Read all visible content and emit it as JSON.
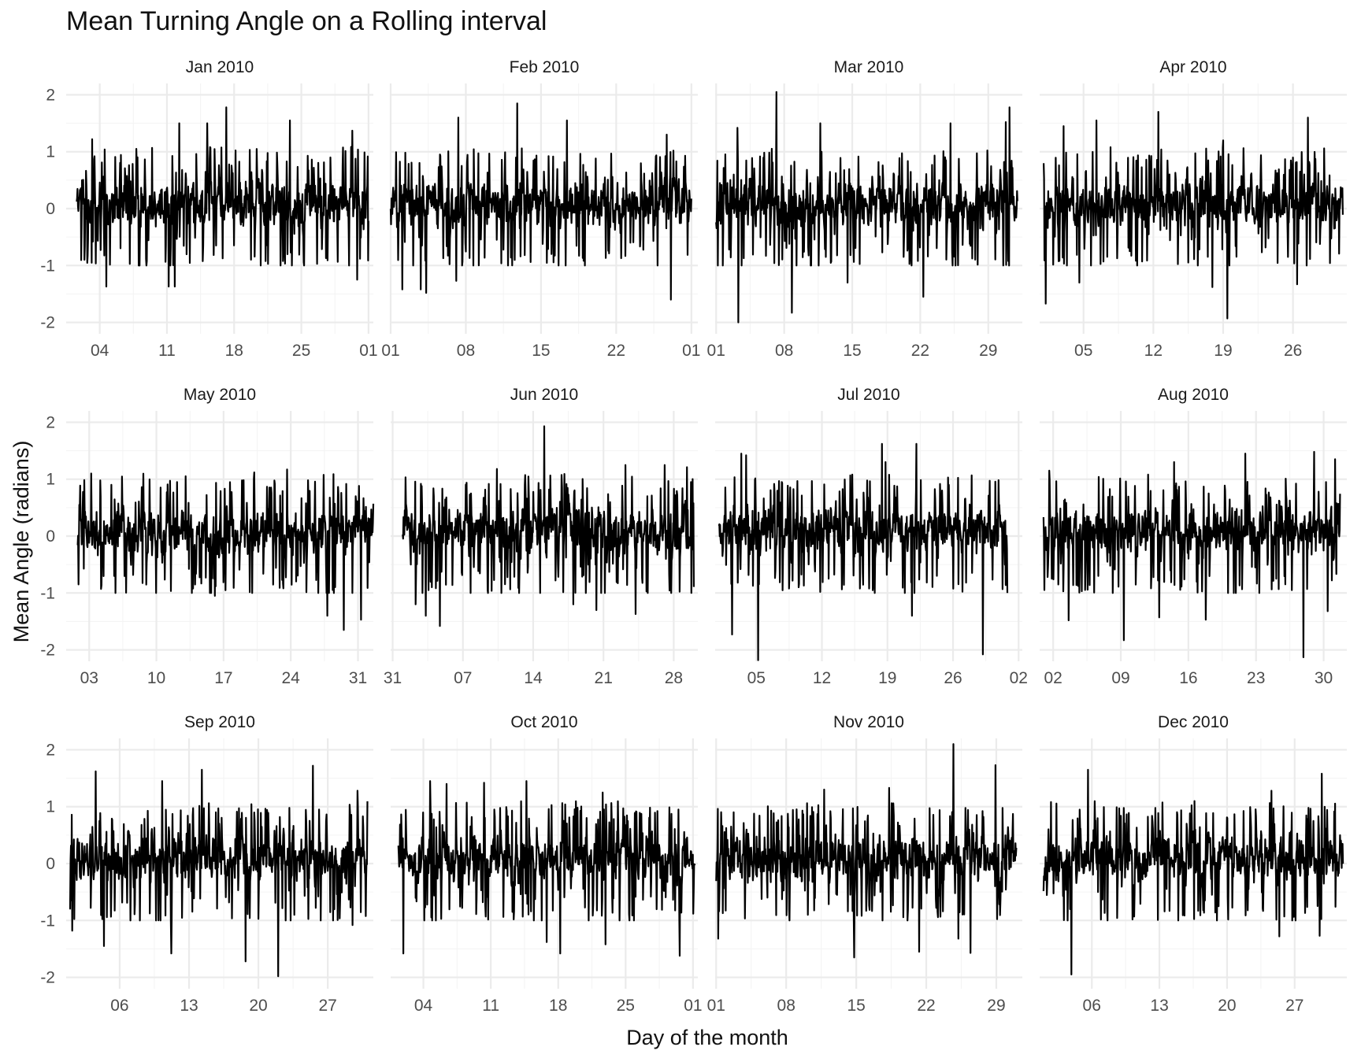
{
  "chart_data": {
    "type": "line",
    "title": "Mean Turning Angle on a Rolling interval",
    "xlabel": "Day of the month",
    "ylabel": "Mean Angle (radians)",
    "ylim": [
      -2.2,
      2.2
    ],
    "y_ticks": [
      -2,
      -1,
      0,
      1,
      2
    ],
    "grid": true,
    "legend": "none",
    "line_color": "#000000",
    "panels": [
      {
        "label": "Jan 2010",
        "x_ticks": [
          "04",
          "11",
          "18",
          "25",
          "01"
        ],
        "x_tick_days": [
          3,
          10,
          17,
          24,
          31
        ],
        "x_range": [
          -0.5,
          31.5
        ],
        "data_range": [
          0.6,
          31.0
        ],
        "peaks": [
          [
            2.2,
            1.22
          ],
          [
            6.8,
            1.05
          ],
          [
            11.3,
            1.5
          ],
          [
            14.2,
            1.5
          ],
          [
            16.2,
            1.78
          ],
          [
            22.8,
            1.55
          ],
          [
            29.3,
            1.37
          ]
        ],
        "troughs": [
          [
            1.4,
            -0.9
          ],
          [
            3.7,
            -1.37
          ],
          [
            10.2,
            -1.37
          ],
          [
            10.8,
            -1.37
          ],
          [
            29.8,
            -1.25
          ]
        ]
      },
      {
        "label": "Feb 2010",
        "x_ticks": [
          "01",
          "08",
          "15",
          "22",
          "01"
        ],
        "x_tick_days": [
          0,
          7,
          14,
          21,
          28
        ],
        "x_range": [
          0,
          28.6
        ],
        "data_range": [
          0.0,
          28.0
        ],
        "peaks": [
          [
            6.3,
            1.6
          ],
          [
            11.8,
            1.85
          ],
          [
            16.4,
            1.55
          ],
          [
            25.7,
            1.3
          ]
        ],
        "troughs": [
          [
            1.1,
            -1.42
          ],
          [
            2.8,
            -1.42
          ],
          [
            3.3,
            -1.48
          ],
          [
            6.1,
            -1.27
          ],
          [
            26.1,
            -1.6
          ]
        ]
      },
      {
        "label": "Mar 2010",
        "x_ticks": [
          "01",
          "08",
          "15",
          "22",
          "29"
        ],
        "x_tick_days": [
          0,
          7,
          14,
          21,
          28
        ],
        "x_range": [
          -0.1,
          31.5
        ],
        "data_range": [
          0.0,
          31.0
        ],
        "peaks": [
          [
            2.2,
            1.42
          ],
          [
            6.2,
            2.05
          ],
          [
            10.7,
            1.5
          ],
          [
            24.1,
            1.5
          ],
          [
            29.8,
            1.52
          ],
          [
            30.2,
            1.78
          ]
        ],
        "troughs": [
          [
            2.3,
            -2.0
          ],
          [
            7.8,
            -1.83
          ],
          [
            13.5,
            -1.3
          ],
          [
            21.3,
            -1.55
          ]
        ]
      },
      {
        "label": "Apr 2010",
        "x_ticks": [
          "05",
          "12",
          "19",
          "26"
        ],
        "x_tick_days": [
          4,
          11,
          18,
          25
        ],
        "x_range": [
          -0.4,
          30.4
        ],
        "data_range": [
          0.0,
          30.0
        ],
        "peaks": [
          [
            2.0,
            1.45
          ],
          [
            5.3,
            1.55
          ],
          [
            11.5,
            1.7
          ],
          [
            18.0,
            1.2
          ],
          [
            26.5,
            1.6
          ]
        ],
        "troughs": [
          [
            0.2,
            -1.67
          ],
          [
            3.6,
            -1.3
          ],
          [
            16.9,
            -1.38
          ],
          [
            18.4,
            -1.93
          ],
          [
            25.4,
            -1.33
          ]
        ]
      },
      {
        "label": "May 2010",
        "x_ticks": [
          "03",
          "10",
          "17",
          "24",
          "31"
        ],
        "x_tick_days": [
          2,
          9,
          16,
          23,
          30
        ],
        "x_range": [
          -0.4,
          31.6
        ],
        "data_range": [
          0.8,
          31.6
        ],
        "peaks": [
          [
            2.2,
            1.1
          ],
          [
            19.2,
            1.12
          ],
          [
            22.6,
            1.17
          ],
          [
            17.9,
            0.98
          ]
        ],
        "troughs": [
          [
            0.9,
            -0.85
          ],
          [
            15.1,
            -1.05
          ],
          [
            26.8,
            -1.4
          ],
          [
            28.5,
            -1.65
          ],
          [
            30.3,
            -1.47
          ]
        ]
      },
      {
        "label": "Jun 2010",
        "x_ticks": [
          "31",
          "07",
          "14",
          "21",
          "28"
        ],
        "x_tick_days": [
          -1,
          6,
          13,
          20,
          27
        ],
        "x_range": [
          -1.2,
          29.4
        ],
        "data_range": [
          0.0,
          29.0
        ],
        "peaks": [
          [
            9.4,
            1.18
          ],
          [
            14.1,
            1.93
          ],
          [
            22.2,
            1.25
          ],
          [
            26.1,
            1.25
          ],
          [
            28.3,
            1.21
          ]
        ],
        "troughs": [
          [
            1.3,
            -1.2
          ],
          [
            2.3,
            -1.4
          ],
          [
            3.7,
            -1.58
          ],
          [
            17.0,
            -1.2
          ],
          [
            19.3,
            -1.3
          ],
          [
            23.2,
            -1.37
          ]
        ]
      },
      {
        "label": "Jul 2010",
        "x_ticks": [
          "05",
          "12",
          "19",
          "26",
          "02"
        ],
        "x_tick_days": [
          4,
          11,
          18,
          25,
          32
        ],
        "x_range": [
          -0.4,
          32.4
        ],
        "data_range": [
          0.0,
          30.8
        ],
        "peaks": [
          [
            2.4,
            1.45
          ],
          [
            2.9,
            1.42
          ],
          [
            17.4,
            1.62
          ],
          [
            21.1,
            1.62
          ],
          [
            17.8,
            1.3
          ]
        ],
        "troughs": [
          [
            1.4,
            -1.73
          ],
          [
            4.2,
            -2.18
          ],
          [
            20.6,
            -1.4
          ],
          [
            28.2,
            -2.08
          ],
          [
            30.8,
            -1.0
          ]
        ]
      },
      {
        "label": "Aug 2010",
        "x_ticks": [
          "02",
          "09",
          "16",
          "23",
          "30"
        ],
        "x_tick_days": [
          1,
          8,
          15,
          22,
          29
        ],
        "x_range": [
          -0.4,
          31.4
        ],
        "data_range": [
          0.0,
          30.7
        ],
        "peaks": [
          [
            0.6,
            1.15
          ],
          [
            13.5,
            1.3
          ],
          [
            20.9,
            1.45
          ],
          [
            28.0,
            1.48
          ],
          [
            30.2,
            1.35
          ]
        ],
        "troughs": [
          [
            2.6,
            -1.48
          ],
          [
            8.3,
            -1.83
          ],
          [
            12.0,
            -1.43
          ],
          [
            16.8,
            -1.47
          ],
          [
            26.9,
            -2.13
          ],
          [
            29.4,
            -1.32
          ]
        ]
      },
      {
        "label": "Sep 2010",
        "x_ticks": [
          "06",
          "13",
          "20",
          "27"
        ],
        "x_tick_days": [
          5,
          12,
          19,
          26
        ],
        "x_range": [
          -0.4,
          30.6
        ],
        "data_range": [
          0.0,
          30.0
        ],
        "peaks": [
          [
            2.6,
            1.62
          ],
          [
            9.3,
            1.45
          ],
          [
            13.3,
            1.65
          ],
          [
            24.5,
            1.72
          ],
          [
            29.0,
            1.28
          ]
        ],
        "troughs": [
          [
            0.2,
            -1.18
          ],
          [
            3.4,
            -1.45
          ],
          [
            10.2,
            -1.58
          ],
          [
            17.7,
            -1.72
          ],
          [
            21.0,
            -1.98
          ],
          [
            28.5,
            -1.08
          ]
        ]
      },
      {
        "label": "Oct 2010",
        "x_ticks": [
          "04",
          "11",
          "18",
          "25",
          "01"
        ],
        "x_tick_days": [
          3,
          10,
          17,
          24,
          31
        ],
        "x_range": [
          -0.4,
          31.5
        ],
        "data_range": [
          0.4,
          31.2
        ],
        "peaks": [
          [
            3.7,
            1.45
          ],
          [
            5.4,
            1.4
          ],
          [
            9.3,
            1.42
          ],
          [
            13.7,
            1.45
          ],
          [
            17.2,
            1.42
          ],
          [
            21.6,
            1.25
          ]
        ],
        "troughs": [
          [
            0.9,
            -1.58
          ],
          [
            15.8,
            -1.38
          ],
          [
            17.2,
            -1.58
          ],
          [
            21.9,
            -1.42
          ],
          [
            29.6,
            -1.62
          ]
        ]
      },
      {
        "label": "Nov 2010",
        "x_ticks": [
          "01",
          "08",
          "15",
          "22",
          "29"
        ],
        "x_tick_days": [
          0,
          7,
          14,
          21,
          28
        ],
        "x_range": [
          -0.1,
          30.6
        ],
        "data_range": [
          0.0,
          30.0
        ],
        "peaks": [
          [
            10.8,
            1.3
          ],
          [
            17.3,
            1.33
          ],
          [
            23.7,
            2.1
          ],
          [
            27.9,
            1.73
          ]
        ],
        "troughs": [
          [
            0.2,
            -1.32
          ],
          [
            13.8,
            -1.65
          ],
          [
            20.3,
            -1.55
          ],
          [
            24.2,
            -1.32
          ],
          [
            25.4,
            -1.57
          ]
        ]
      },
      {
        "label": "Dec 2010",
        "x_ticks": [
          "06",
          "13",
          "20",
          "27"
        ],
        "x_tick_days": [
          5,
          12,
          19,
          26
        ],
        "x_range": [
          -0.4,
          31.4
        ],
        "data_range": [
          0.0,
          31.0
        ],
        "peaks": [
          [
            4.6,
            1.65
          ],
          [
            23.6,
            1.28
          ],
          [
            28.8,
            1.58
          ]
        ],
        "troughs": [
          [
            2.9,
            -1.95
          ],
          [
            24.4,
            -1.28
          ],
          [
            28.6,
            -1.27
          ]
        ]
      }
    ]
  }
}
